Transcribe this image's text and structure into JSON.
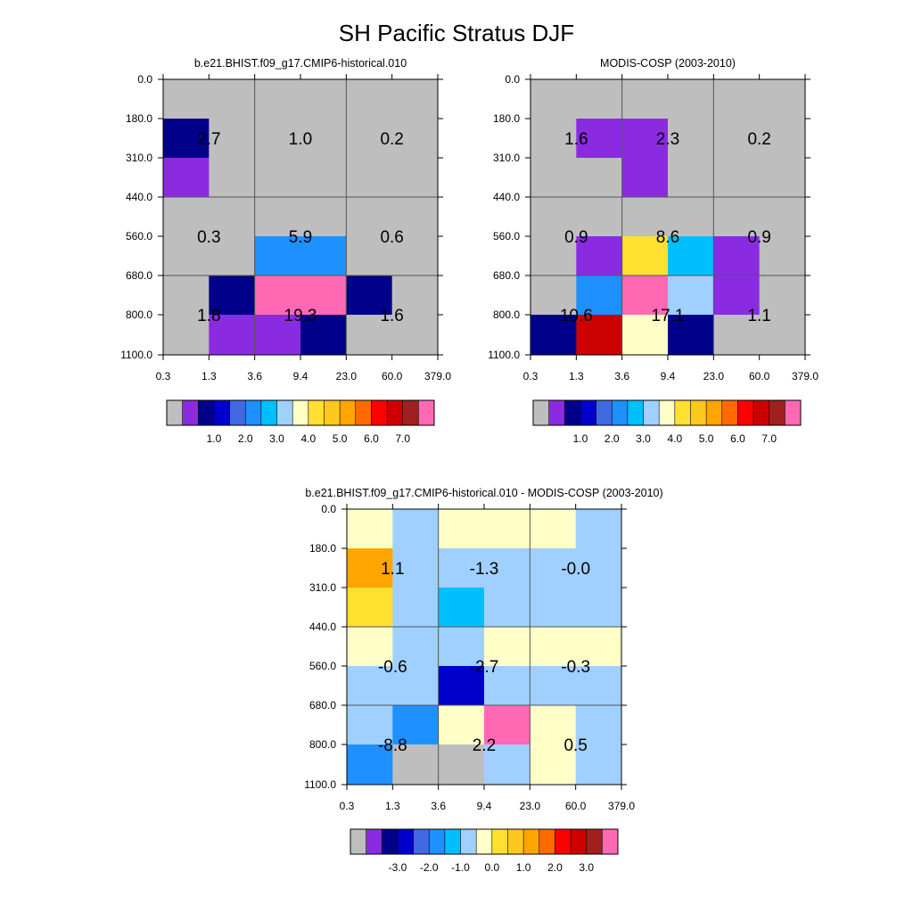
{
  "figure": {
    "title": "SH Pacific Stratus DJF"
  },
  "palette": {
    "colors": [
      "#bebebe",
      "#8a2be2",
      "#00008b",
      "#0000cd",
      "#4169e1",
      "#1e90ff",
      "#00bfff",
      "#a0d0ff",
      "#ffffc8",
      "#ffe030",
      "#ffc81e",
      "#ffa500",
      "#ff6a00",
      "#ff0000",
      "#cd0000",
      "#a02020",
      "#ff69b4"
    ]
  },
  "chart_data": [
    {
      "type": "heatmap",
      "title": "b.e21.BHIST.f09_g17.CMIP6-historical.010",
      "x_ticks": [
        "0.3",
        "1.3",
        "3.6",
        "9.4",
        "23.0",
        "60.0",
        "379.0"
      ],
      "y_ticks": [
        "0.0",
        "180.0",
        "310.0",
        "440.0",
        "560.0",
        "680.0",
        "800.0",
        "1100.0"
      ],
      "cells": [
        [
          0,
          0,
          0,
          0,
          0,
          0
        ],
        [
          2,
          0,
          0,
          0,
          0,
          0
        ],
        [
          1,
          0,
          0,
          0,
          0,
          0
        ],
        [
          0,
          0,
          0,
          0,
          0,
          0
        ],
        [
          0,
          0,
          5,
          5,
          0,
          0
        ],
        [
          0,
          2,
          16,
          16,
          2,
          0
        ],
        [
          0,
          1,
          1,
          2,
          0,
          0
        ]
      ],
      "box_values": [
        [
          "2.7",
          "1.0",
          "0.2"
        ],
        [
          "0.3",
          "5.9",
          "0.6"
        ],
        [
          "1.8",
          "19.3",
          "1.6"
        ]
      ],
      "colorbar_labels": [
        "1.0",
        "2.0",
        "3.0",
        "4.0",
        "5.0",
        "6.0",
        "7.0"
      ]
    },
    {
      "type": "heatmap",
      "title": "MODIS-COSP (2003-2010)",
      "x_ticks": [
        "0.3",
        "1.3",
        "3.6",
        "9.4",
        "23.0",
        "60.0",
        "379.0"
      ],
      "y_ticks": [
        "0.0",
        "180.0",
        "310.0",
        "440.0",
        "560.0",
        "680.0",
        "800.0",
        "1100.0"
      ],
      "cells": [
        [
          0,
          0,
          0,
          0,
          0,
          0
        ],
        [
          0,
          1,
          1,
          0,
          0,
          0
        ],
        [
          0,
          0,
          1,
          0,
          0,
          0
        ],
        [
          0,
          0,
          0,
          0,
          0,
          0
        ],
        [
          0,
          1,
          9,
          6,
          1,
          0
        ],
        [
          0,
          5,
          16,
          7,
          1,
          0
        ],
        [
          2,
          14,
          8,
          2,
          0,
          0
        ]
      ],
      "box_values": [
        [
          "1.6",
          "2.3",
          "0.2"
        ],
        [
          "0.9",
          "8.6",
          "0.9"
        ],
        [
          "10.6",
          "17.1",
          "1.1"
        ]
      ],
      "colorbar_labels": [
        "1.0",
        "2.0",
        "3.0",
        "4.0",
        "5.0",
        "6.0",
        "7.0"
      ]
    },
    {
      "type": "heatmap",
      "title": "b.e21.BHIST.f09_g17.CMIP6-historical.010 - MODIS-COSP (2003-2010)",
      "x_ticks": [
        "0.3",
        "1.3",
        "3.6",
        "9.4",
        "23.0",
        "60.0",
        "379.0"
      ],
      "y_ticks": [
        "0.0",
        "180.0",
        "310.0",
        "440.0",
        "560.0",
        "680.0",
        "800.0",
        "1100.0"
      ],
      "cells": [
        [
          8,
          7,
          8,
          8,
          8,
          7
        ],
        [
          11,
          7,
          7,
          7,
          7,
          7
        ],
        [
          9,
          7,
          6,
          7,
          7,
          7
        ],
        [
          8,
          7,
          7,
          8,
          8,
          8
        ],
        [
          7,
          7,
          3,
          7,
          7,
          7
        ],
        [
          7,
          5,
          8,
          16,
          8,
          7
        ],
        [
          5,
          0,
          0,
          7,
          8,
          7
        ]
      ],
      "box_values": [
        [
          "1.1",
          "-1.3",
          "-0.0"
        ],
        [
          "-0.6",
          "-2.7",
          "-0.3"
        ],
        [
          "-8.8",
          "2.2",
          "0.5"
        ]
      ],
      "colorbar_labels": [
        "-3.0",
        "-2.0",
        "-1.0",
        "0.0",
        "1.0",
        "2.0",
        "3.0"
      ]
    }
  ]
}
